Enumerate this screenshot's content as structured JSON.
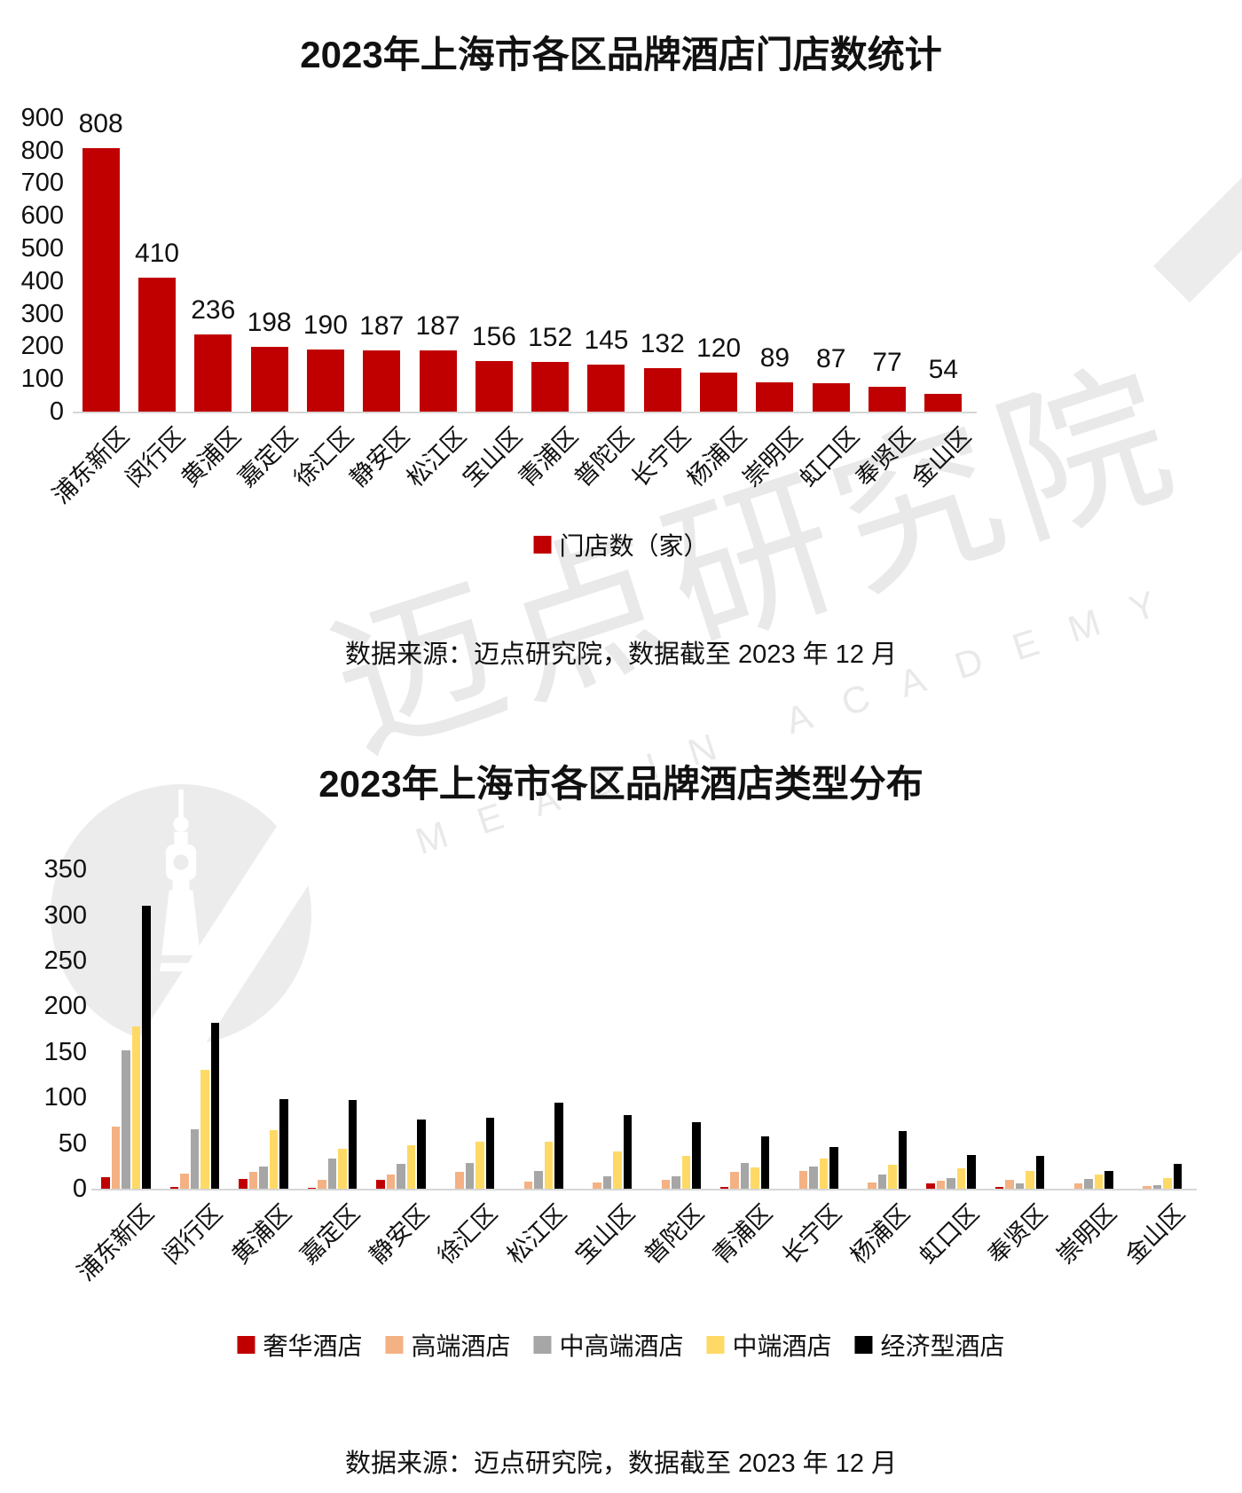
{
  "watermark": {
    "cn": "迈点研究院",
    "en": "MEADIN ACADEMY",
    "text_color": "#e9e9e9",
    "shape_color": "#ececec"
  },
  "chart_data": [
    {
      "type": "bar",
      "title": "2023年上海市各区品牌酒店门店数统计",
      "categories": [
        "浦东新区",
        "闵行区",
        "黄浦区",
        "嘉定区",
        "徐汇区",
        "静安区",
        "松江区",
        "宝山区",
        "青浦区",
        "普陀区",
        "长宁区",
        "杨浦区",
        "崇明区",
        "虹口区",
        "奉贤区",
        "金山区"
      ],
      "series": [
        {
          "name": "门店数（家）",
          "color": "#c00000",
          "values": [
            808,
            410,
            236,
            198,
            190,
            187,
            187,
            156,
            152,
            145,
            132,
            120,
            89,
            87,
            77,
            54
          ]
        }
      ],
      "ylim": [
        0,
        900
      ],
      "ytick_step": 100,
      "grid": false,
      "legend_position": "bottom",
      "value_labels": true,
      "source_note": "数据来源：迈点研究院，数据截至 2023 年 12 月"
    },
    {
      "type": "bar",
      "title": "2023年上海市各区品牌酒店类型分布",
      "categories": [
        "浦东新区",
        "闵行区",
        "黄浦区",
        "嘉定区",
        "静安区",
        "徐汇区",
        "松江区",
        "宝山区",
        "普陀区",
        "青浦区",
        "长宁区",
        "杨浦区",
        "虹口区",
        "奉贤区",
        "崇明区",
        "金山区"
      ],
      "series": [
        {
          "name": "奢华酒店",
          "color": "#c00000",
          "values": [
            13,
            2,
            11,
            1,
            10,
            0,
            0,
            0,
            0,
            2,
            0,
            0,
            6,
            2,
            0,
            0
          ]
        },
        {
          "name": "高端酒店",
          "color": "#f4b183",
          "values": [
            68,
            17,
            18,
            10,
            16,
            18,
            8,
            7,
            10,
            18,
            19,
            7,
            9,
            10,
            6,
            3
          ]
        },
        {
          "name": "中高端酒店",
          "color": "#a6a6a6",
          "values": [
            152,
            65,
            24,
            33,
            27,
            28,
            19,
            14,
            14,
            28,
            24,
            16,
            12,
            6,
            11,
            4
          ]
        },
        {
          "name": "中端酒店",
          "color": "#ffd966",
          "values": [
            178,
            130,
            64,
            44,
            48,
            52,
            52,
            41,
            36,
            23,
            33,
            26,
            22,
            19,
            16,
            12
          ]
        },
        {
          "name": "经济型酒店",
          "color": "#000000",
          "values": [
            310,
            182,
            98,
            97,
            76,
            78,
            94,
            81,
            73,
            57,
            46,
            63,
            37,
            36,
            19,
            27
          ]
        }
      ],
      "ylim": [
        0,
        350
      ],
      "ytick_step": 50,
      "grid": false,
      "legend_position": "bottom",
      "value_labels": false,
      "source_note": "数据来源：迈点研究院，数据截至 2023 年 12 月"
    }
  ]
}
